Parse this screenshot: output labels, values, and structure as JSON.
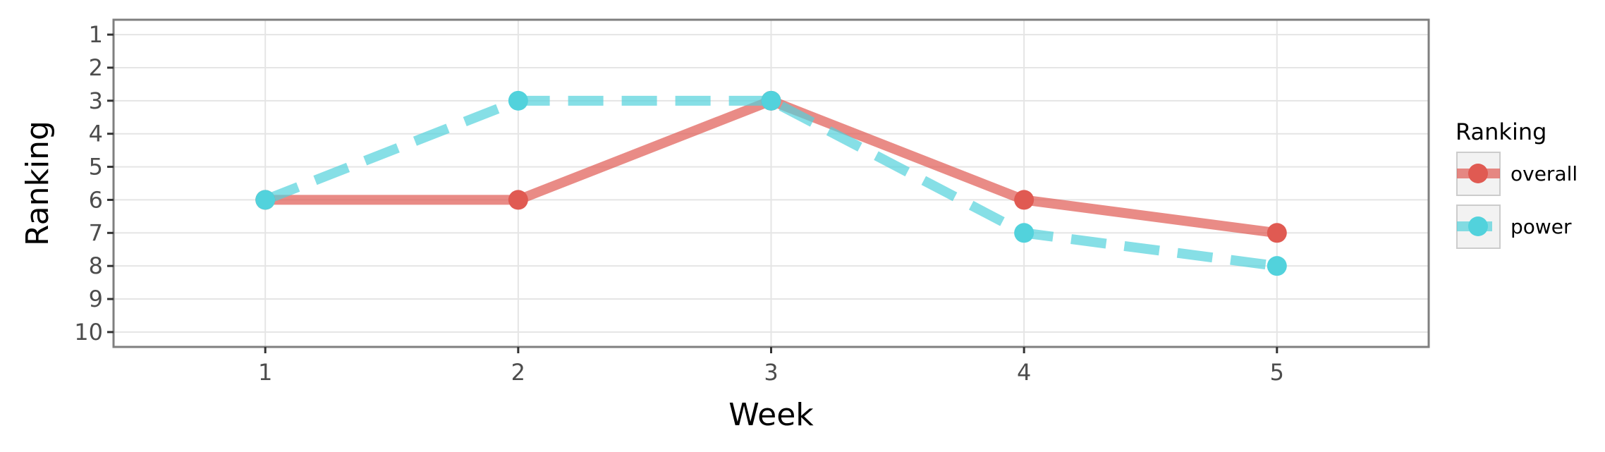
{
  "chart_data": {
    "type": "line",
    "title": "",
    "xlabel": "Week",
    "ylabel": "Ranking",
    "x": [
      1,
      2,
      3,
      4,
      5
    ],
    "x_ticks": [
      "1",
      "2",
      "3",
      "4",
      "5"
    ],
    "xlim": [
      0.4,
      5.6
    ],
    "y_ticks": [
      "1",
      "2",
      "3",
      "4",
      "5",
      "6",
      "7",
      "8",
      "9",
      "10"
    ],
    "ylim": [
      10.45,
      0.55
    ],
    "y_reversed": true,
    "grid": true,
    "legend": {
      "title": "Ranking",
      "position": "right"
    },
    "series": [
      {
        "name": "overall",
        "values": [
          6,
          6,
          3,
          6,
          7
        ],
        "color": "#e05a52",
        "linestyle": "solid"
      },
      {
        "name": "power",
        "values": [
          6,
          3,
          3,
          7,
          8
        ],
        "color": "#52d2dc",
        "linestyle": "dashed"
      }
    ]
  }
}
